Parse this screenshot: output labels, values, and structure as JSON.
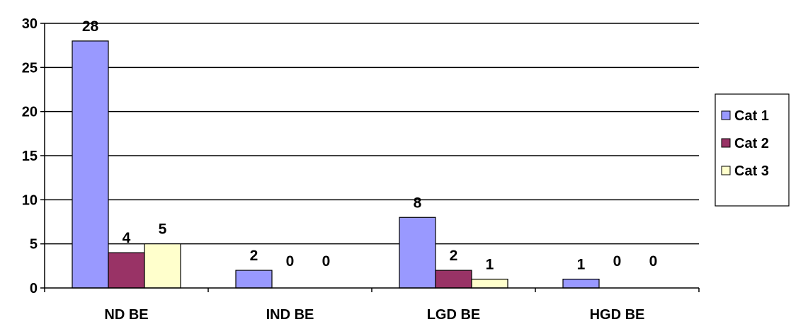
{
  "chart_data": {
    "type": "bar",
    "categories": [
      "ND BE",
      "IND BE",
      "LGD BE",
      "HGD BE"
    ],
    "series": [
      {
        "name": "Cat 1",
        "values": [
          28,
          2,
          8,
          1
        ],
        "color": "#9999ff"
      },
      {
        "name": "Cat 2",
        "values": [
          4,
          0,
          2,
          0
        ],
        "color": "#993366"
      },
      {
        "name": "Cat 3",
        "values": [
          5,
          0,
          1,
          0
        ],
        "color": "#ffffcc"
      }
    ],
    "data_labels": [
      [
        "28",
        "2",
        "8",
        "1"
      ],
      [
        "4",
        "0",
        "2",
        "0"
      ],
      [
        "5",
        "0",
        "1",
        "0"
      ]
    ],
    "y_ticks": [
      "0",
      "5",
      "10",
      "15",
      "20",
      "25",
      "30"
    ],
    "ylim": [
      0,
      30
    ],
    "title": "",
    "xlabel": "",
    "ylabel": "",
    "grid": true,
    "legend_position": "right"
  }
}
